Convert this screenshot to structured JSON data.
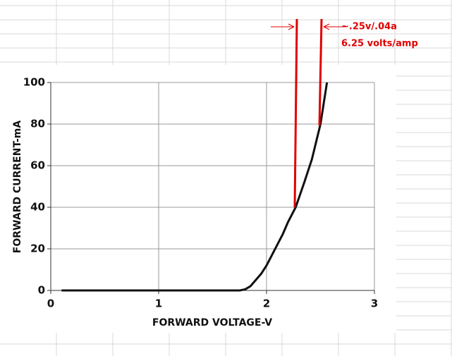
{
  "chart_data": {
    "type": "line",
    "x_label": "FORWARD VOLTAGE-V",
    "y_label": "FORWARD CURRENT-mA",
    "x": [
      0.1,
      1.0,
      1.75,
      1.8,
      1.85,
      1.9,
      1.95,
      2.0,
      2.05,
      2.1,
      2.15,
      2.2,
      2.27,
      2.35,
      2.42,
      2.5,
      2.53,
      2.56
    ],
    "values": [
      0,
      0,
      0,
      0.5,
      2,
      5,
      8,
      12,
      17,
      22,
      27,
      33,
      40,
      52,
      63,
      80,
      90,
      100
    ],
    "color": "#111111",
    "xlim": [
      0,
      3
    ],
    "ylim": [
      0,
      100
    ],
    "xticks": [
      0,
      1,
      2,
      3
    ],
    "yticks": [
      0,
      20,
      40,
      60,
      80,
      100
    ],
    "grid": true,
    "annotations": [
      "~.25v/.04a",
      "6.25 volts/amp"
    ],
    "annotation_color": "#e00000"
  }
}
